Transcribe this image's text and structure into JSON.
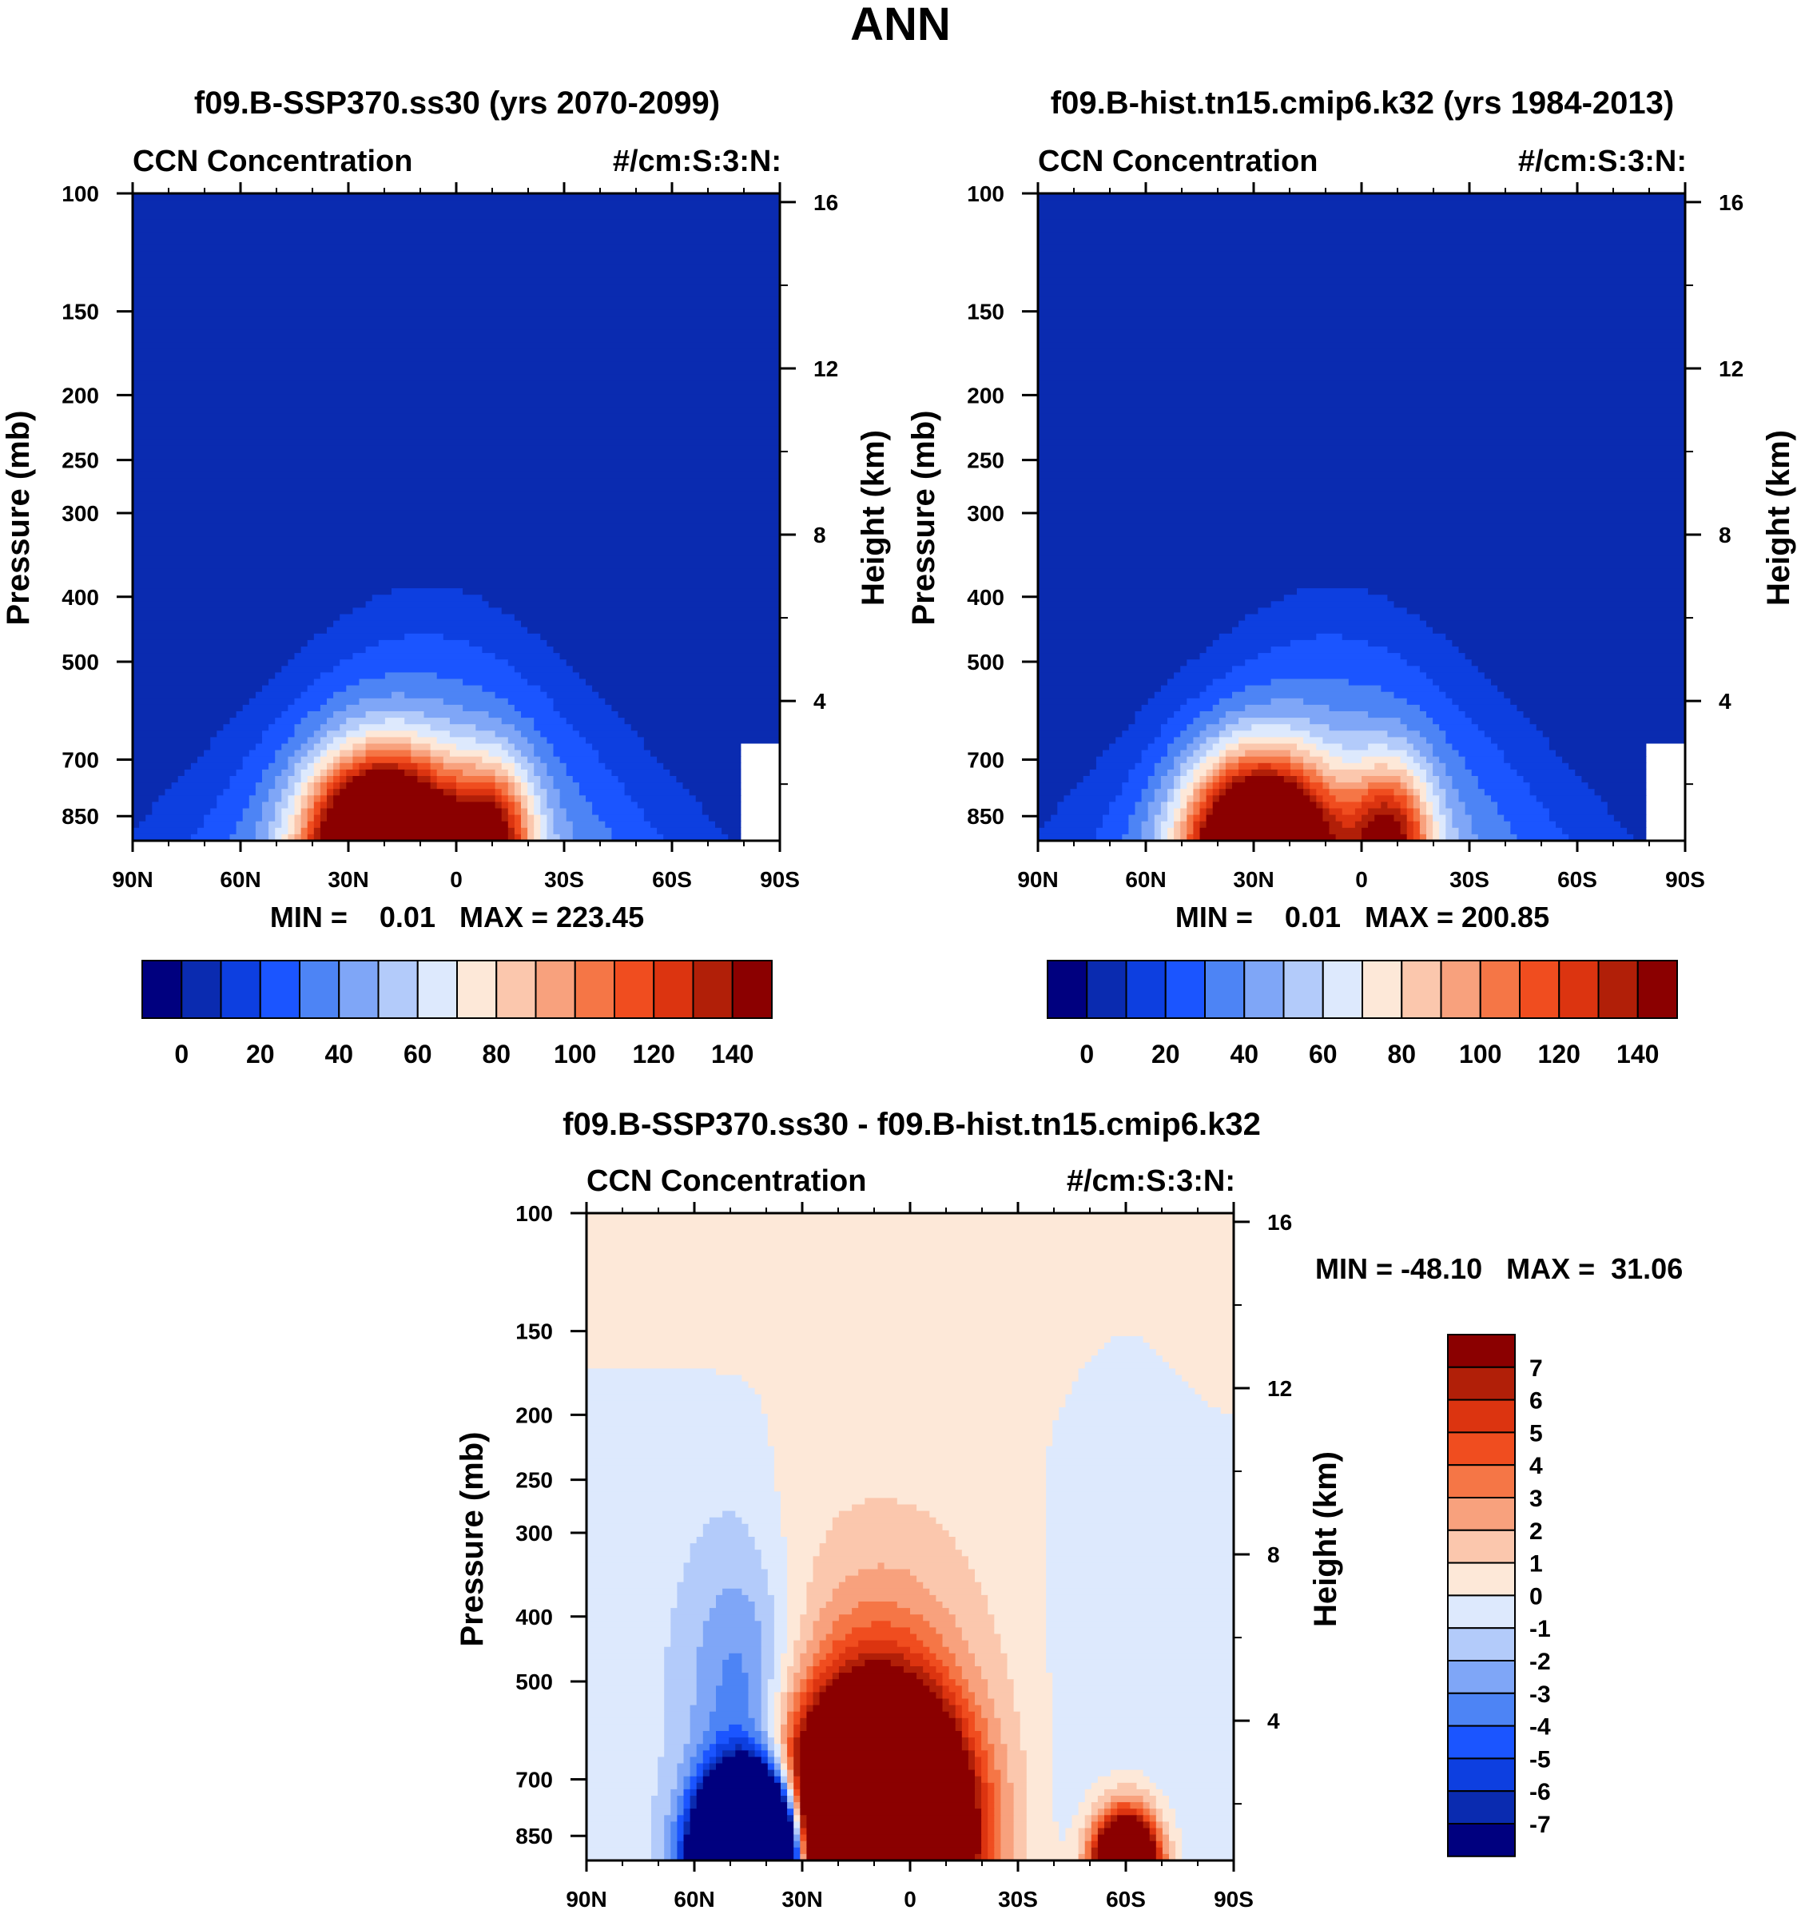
{
  "figure_title": "ANN",
  "chart_data": [
    {
      "type": "heatmap",
      "panel": "top-left",
      "title": "f09.B-SSP370.ss30 (yrs 2070-2099)",
      "left_string": "CCN Concentration",
      "right_string": "#/cm:S:3:N:",
      "xlabel": "",
      "ylabel": "Pressure (mb)",
      "ylabel_right": "Height (km)",
      "x_ticks": [
        "90N",
        "60N",
        "30N",
        "0",
        "30S",
        "60S",
        "90S"
      ],
      "y_ticks": [
        "100",
        "150",
        "200",
        "250",
        "300",
        "400",
        "500",
        "700",
        "850"
      ],
      "y_right_ticks": [
        "16",
        "12",
        "8",
        "4"
      ],
      "min_max": "MIN =    0.01   MAX = 223.45",
      "field": "cooler",
      "colorbar": {
        "levels": [
          "0",
          "20",
          "40",
          "60",
          "80",
          "100",
          "120",
          "140"
        ],
        "colors": [
          "#00007f",
          "#0a2bb0",
          "#0d3fe0",
          "#1b55ff",
          "#4d84f5",
          "#7fa6f7",
          "#b3cbfa",
          "#dde9fd",
          "#fde8d8",
          "#fbc7ad",
          "#f8a17d",
          "#f57646",
          "#f04d1f",
          "#dc3410",
          "#b11f08",
          "#8b0000"
        ]
      },
      "plume": {
        "peak_lat": 20,
        "peak_value": 223.45,
        "secondary_lat": -10
      }
    },
    {
      "type": "heatmap",
      "panel": "top-right",
      "title": "f09.B-hist.tn15.cmip6.k32 (yrs 1984-2013)",
      "left_string": "CCN Concentration",
      "right_string": "#/cm:S:3:N:",
      "xlabel": "",
      "ylabel": "Pressure (mb)",
      "ylabel_right": "Height (km)",
      "x_ticks": [
        "90N",
        "60N",
        "30N",
        "0",
        "30S",
        "60S",
        "90S"
      ],
      "y_ticks": [
        "100",
        "150",
        "200",
        "250",
        "300",
        "400",
        "500",
        "700",
        "850"
      ],
      "y_right_ticks": [
        "16",
        "12",
        "8",
        "4"
      ],
      "min_max": "MIN =    0.01   MAX = 200.85",
      "field": "historical",
      "colorbar": {
        "levels": [
          "0",
          "20",
          "40",
          "60",
          "80",
          "100",
          "120",
          "140"
        ],
        "colors": [
          "#00007f",
          "#0a2bb0",
          "#0d3fe0",
          "#1b55ff",
          "#4d84f5",
          "#7fa6f7",
          "#b3cbfa",
          "#dde9fd",
          "#fde8d8",
          "#fbc7ad",
          "#f8a17d",
          "#f57646",
          "#f04d1f",
          "#dc3410",
          "#b11f08",
          "#8b0000"
        ]
      },
      "plume": {
        "peak_lat": 28,
        "peak_value": 200.85,
        "secondary_lat": -8
      }
    },
    {
      "type": "heatmap",
      "panel": "bottom",
      "title": "f09.B-SSP370.ss30 - f09.B-hist.tn15.cmip6.k32",
      "left_string": "CCN Concentration",
      "right_string": "#/cm:S:3:N:",
      "xlabel": "",
      "ylabel": "Pressure (mb)",
      "ylabel_right": "Height (km)",
      "x_ticks": [
        "90N",
        "60N",
        "30N",
        "0",
        "30S",
        "60S",
        "90S"
      ],
      "y_ticks": [
        "100",
        "150",
        "200",
        "250",
        "300",
        "400",
        "500",
        "700",
        "850"
      ],
      "y_right_ticks": [
        "16",
        "12",
        "8",
        "4"
      ],
      "min_max": "MIN = -48.10   MAX =  31.06",
      "field": "difference",
      "colorbar": {
        "levels": [
          "7",
          "6",
          "5",
          "4",
          "3",
          "2",
          "1",
          "0",
          "-1",
          "-2",
          "-3",
          "-4",
          "-5",
          "-6",
          "-7"
        ],
        "colors": [
          "#8b0000",
          "#b11f08",
          "#dc3410",
          "#f04d1f",
          "#f57646",
          "#f8a17d",
          "#fbc7ad",
          "#fde8d8",
          "#dde9fd",
          "#b3cbfa",
          "#7fa6f7",
          "#4d84f5",
          "#1b55ff",
          "#0d3fe0",
          "#0a2bb0",
          "#00007f"
        ]
      }
    }
  ]
}
